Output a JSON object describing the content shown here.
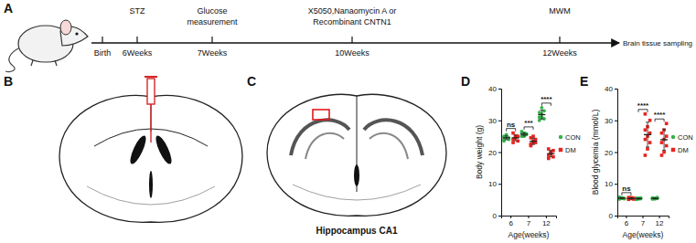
{
  "panel_labels": [
    "A",
    "B",
    "C",
    "D",
    "E"
  ],
  "timeline": {
    "events": [
      {
        "below": "Birth"
      },
      {
        "above": [
          "STZ"
        ],
        "below": "6Weeks"
      },
      {
        "above": [
          "Glucose",
          "measurement"
        ],
        "below": "7Weeks"
      },
      {
        "above": [
          "X5050,Nanaomycin A or",
          "Recombinant CNTN1"
        ],
        "below": "10Weeks"
      },
      {
        "above": [
          "MWM"
        ],
        "below": "12Weeks"
      }
    ],
    "end": "Brain tissue sampling"
  },
  "diagram_c_label": "Hippocampus CA1",
  "chart_data": [
    {
      "type": "dot",
      "x_label": "Age(weeks)",
      "y_label": "Body weight (g)",
      "categories": [
        "6",
        "7",
        "12"
      ],
      "ylim": [
        0,
        40
      ],
      "yticks": [
        0,
        10,
        20,
        30,
        40
      ],
      "legend": "right",
      "annotations": [
        "ns",
        "***",
        "****"
      ],
      "series": [
        {
          "name": "CON",
          "color": "#33b24a",
          "marker": "circle",
          "values": [
            24.5,
            25.6,
            31.8
          ],
          "errors": [
            0.6,
            0.5,
            1.4
          ],
          "points": [
            [
              24,
              25,
              24.5,
              23.5,
              25.5,
              24,
              25,
              24.8
            ],
            [
              25,
              26,
              25.5,
              26.5,
              25,
              25.8,
              26,
              25.2
            ],
            [
              30,
              32,
              33,
              31,
              34,
              30.5,
              32.5,
              31
            ]
          ]
        },
        {
          "name": "DM",
          "color": "#e8231f",
          "marker": "square",
          "values": [
            24.5,
            23.4,
            19.5
          ],
          "errors": [
            0.9,
            1.0,
            1.0
          ],
          "points": [
            [
              24,
              25,
              23.5,
              26,
              24.5,
              25,
              23,
              24.8
            ],
            [
              22,
              23.5,
              24,
              22.5,
              25,
              23,
              24.5,
              23
            ],
            [
              19,
              20,
              18.5,
              21,
              19.5,
              20.5,
              18,
              19.8
            ]
          ]
        }
      ]
    },
    {
      "type": "dot",
      "x_label": "Age(weeks)",
      "y_label": "Blood glycemia (mmol/L)",
      "categories": [
        "6",
        "7",
        "12"
      ],
      "ylim": [
        0,
        40
      ],
      "yticks": [
        0,
        10,
        20,
        30,
        40
      ],
      "legend": "right",
      "annotations": [
        "ns",
        "****",
        "****"
      ],
      "series": [
        {
          "name": "CON",
          "color": "#33b24a",
          "marker": "circle",
          "values": [
            5.5,
            5.35,
            5.4
          ],
          "errors": [
            0.2,
            0.15,
            0.15
          ],
          "points": [
            [
              5.2,
              5.6,
              5.4,
              5.8,
              5.5,
              5.3,
              5.7,
              5.5
            ],
            [
              5.1,
              5.4,
              5.3,
              5.5,
              5.2,
              5.6,
              5.3,
              5.4
            ],
            [
              5.2,
              5.5,
              5.4,
              5.6,
              5.3,
              5.7,
              5.4,
              5.3
            ]
          ]
        },
        {
          "name": "DM",
          "color": "#e8231f",
          "marker": "square",
          "values": [
            5.4,
            25.5,
            23.9
          ],
          "errors": [
            0.2,
            3.9,
            3.3
          ],
          "points": [
            [
              5.3,
              5.6,
              5.2,
              5.7,
              5.4,
              5.5,
              5.1,
              5.6
            ],
            [
              19,
              21,
              23,
              24,
              25,
              26,
              27,
              28,
              30,
              32
            ],
            [
              19,
              20,
              22,
              23,
              24,
              25,
              26,
              27,
              29
            ]
          ]
        }
      ]
    }
  ]
}
